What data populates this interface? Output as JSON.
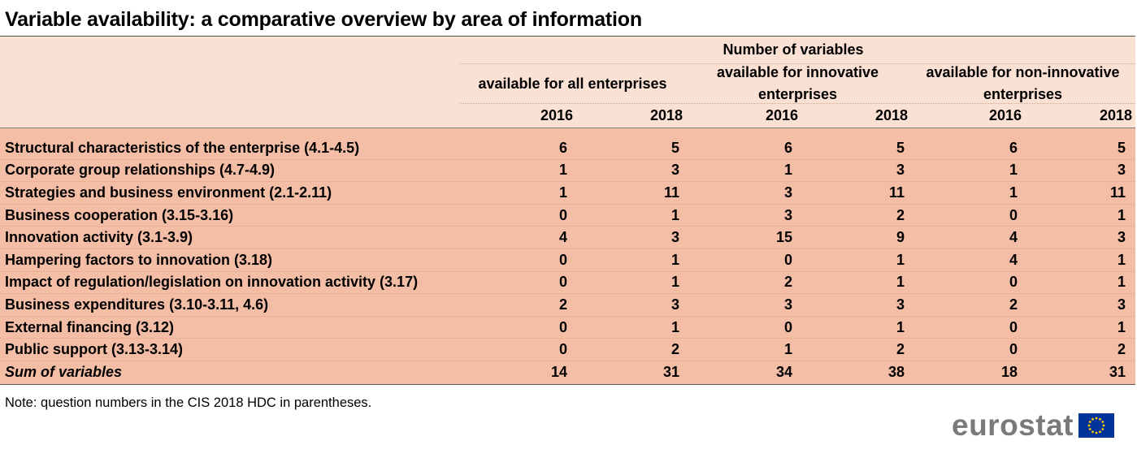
{
  "title": "Variable availability: a comparative overview by area of information",
  "header": {
    "group_title": "Number of variables",
    "groups": [
      {
        "label_line1": "available for all enterprises",
        "label_line2": ""
      },
      {
        "label_line1": "available for innovative",
        "label_line2": "enterprises"
      },
      {
        "label_line1": "available for non-innovative",
        "label_line2": "enterprises"
      }
    ],
    "years": [
      "2016",
      "2018",
      "2016",
      "2018",
      "2016",
      "2018"
    ]
  },
  "rows": [
    {
      "label": "Structural characteristics of the enterprise (4.1-4.5)",
      "values": [
        "6",
        "5",
        "6",
        "5",
        "6",
        "5"
      ]
    },
    {
      "label": "Corporate group relationships (4.7-4.9)",
      "values": [
        "1",
        "3",
        "1",
        "3",
        "1",
        "3"
      ]
    },
    {
      "label": "Strategies and business environment (2.1-2.11)",
      "values": [
        "1",
        "11",
        "3",
        "11",
        "1",
        "11"
      ]
    },
    {
      "label": "Business cooperation (3.15-3.16)",
      "values": [
        "0",
        "1",
        "3",
        "2",
        "0",
        "1"
      ]
    },
    {
      "label": "Innovation activity (3.1-3.9)",
      "values": [
        "4",
        "3",
        "15",
        "9",
        "4",
        "3"
      ]
    },
    {
      "label": "Hampering factors to innovation (3.18)",
      "values": [
        "0",
        "1",
        "0",
        "1",
        "4",
        "1"
      ]
    },
    {
      "label": "Impact of regulation/legislation on innovation activity (3.17)",
      "values": [
        "0",
        "1",
        "2",
        "1",
        "0",
        "1"
      ]
    },
    {
      "label": "Business expenditures (3.10-3.11, 4.6)",
      "values": [
        "2",
        "3",
        "3",
        "3",
        "2",
        "3"
      ]
    },
    {
      "label": "External financing (3.12)",
      "values": [
        "0",
        "1",
        "0",
        "1",
        "0",
        "1"
      ]
    },
    {
      "label": "Public support (3.13-3.14)",
      "values": [
        "0",
        "2",
        "1",
        "2",
        "0",
        "2"
      ]
    }
  ],
  "total": {
    "label": "Sum of variables",
    "values": [
      "14",
      "31",
      "34",
      "38",
      "18",
      "31"
    ]
  },
  "note": "Note: question numbers in the CIS 2018 HDC in parentheses.",
  "logo_text": "eurostat",
  "colors": {
    "header_bg": "#fbe0d4",
    "body_bg": "#f4bda6",
    "logo_grey": "#7a7a7a",
    "flag_blue": "#003399",
    "flag_star": "#ffcc00"
  }
}
